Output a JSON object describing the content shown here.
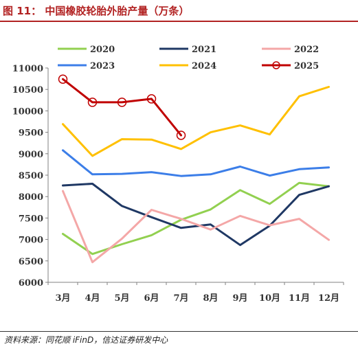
{
  "header": {
    "title": "图 11：  中国橡胶轮胎外胎产量（万条）"
  },
  "footer": {
    "source": "资料来源：同花顺 iFinD，信达证券研发中心"
  },
  "chart_data": {
    "type": "line",
    "title": "图 11：  中国橡胶轮胎外胎产量（万条）",
    "xlabel": "",
    "ylabel": "",
    "categories": [
      "3月",
      "4月",
      "5月",
      "6月",
      "7月",
      "8月",
      "9月",
      "10月",
      "11月",
      "12月"
    ],
    "ylim": [
      6000,
      11000
    ],
    "yticks": [
      6000,
      6500,
      7000,
      7500,
      8000,
      8500,
      9000,
      9500,
      10000,
      10500,
      11000
    ],
    "legend_position": "top",
    "grid": false,
    "series": [
      {
        "name": "2020",
        "color": "#92d050",
        "marker": false,
        "values": [
          7130,
          6660,
          6890,
          7100,
          7460,
          7700,
          8150,
          7830,
          8320,
          8240
        ]
      },
      {
        "name": "2021",
        "color": "#1f3864",
        "marker": false,
        "values": [
          8260,
          8300,
          7780,
          7520,
          7270,
          7350,
          6870,
          7320,
          8040,
          8240
        ]
      },
      {
        "name": "2022",
        "color": "#f4a7a7",
        "marker": false,
        "values": [
          8130,
          6470,
          7020,
          7690,
          7480,
          7230,
          7550,
          7330,
          7480,
          6990
        ]
      },
      {
        "name": "2023",
        "color": "#3c7ee8",
        "marker": false,
        "values": [
          9080,
          8520,
          8530,
          8570,
          8480,
          8520,
          8700,
          8490,
          8640,
          8680
        ]
      },
      {
        "name": "2024",
        "color": "#ffc000",
        "marker": false,
        "values": [
          9690,
          8950,
          9340,
          9330,
          9110,
          9500,
          9660,
          9450,
          10340,
          10560
        ]
      },
      {
        "name": "2025",
        "color": "#c00000",
        "marker": true,
        "values": [
          10740,
          10200,
          10200,
          10280,
          9430,
          null,
          null,
          null,
          null,
          null
        ]
      }
    ]
  }
}
